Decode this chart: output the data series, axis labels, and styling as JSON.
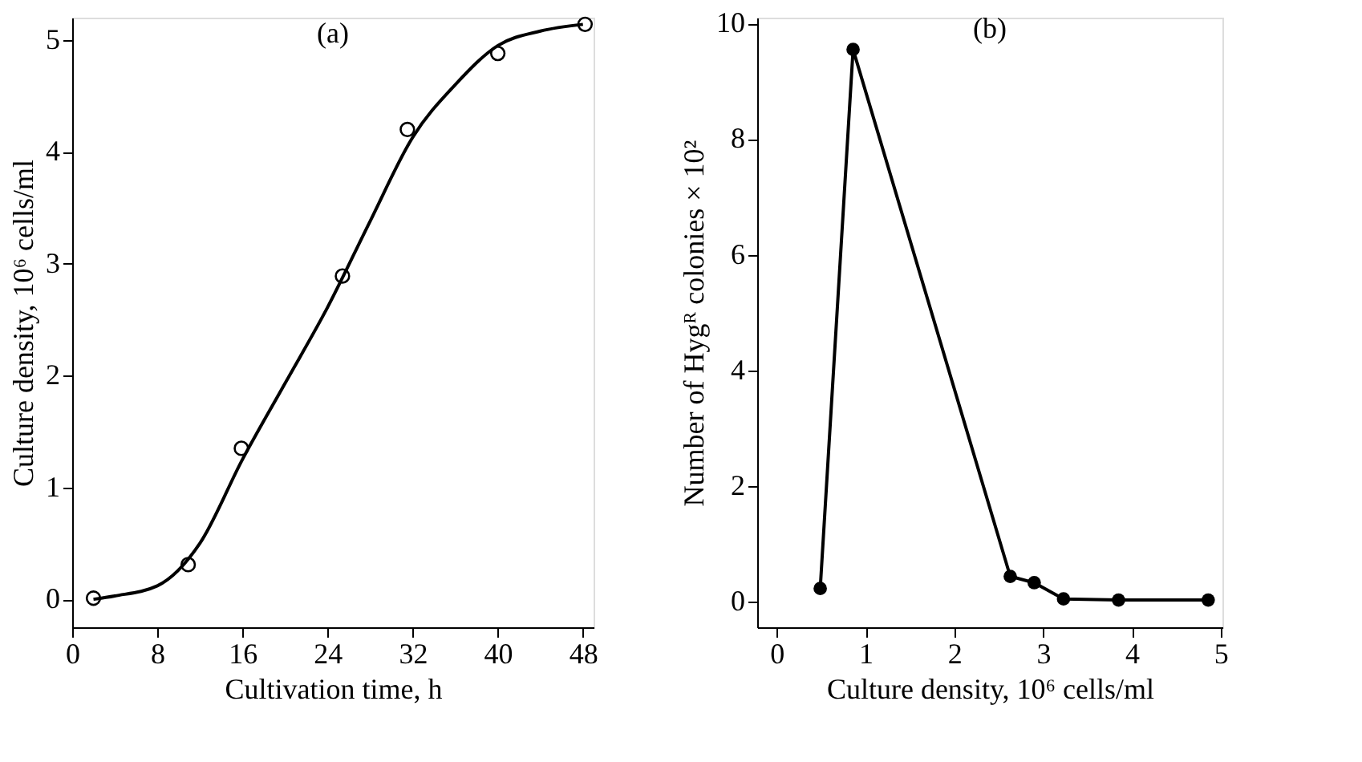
{
  "chart_data": [
    {
      "type": "scatter",
      "title": "(a)",
      "xlabel": "Cultivation time, h",
      "ylabel": "Culture density, 10⁶ cells/ml",
      "xlim": [
        0,
        49
      ],
      "ylim": [
        -0.25,
        5.2
      ],
      "xticks": [
        0,
        8,
        16,
        24,
        32,
        40,
        48
      ],
      "yticks": [
        0,
        1,
        2,
        3,
        4,
        5
      ],
      "grid": false,
      "marker": "circle",
      "series": [
        {
          "type": "scatter",
          "color": "#000000",
          "x": [
            2.0,
            10.9,
            15.9,
            25.4,
            31.5,
            40.0,
            48.2
          ],
          "values": [
            0.01,
            0.31,
            1.35,
            2.89,
            4.2,
            4.88,
            5.14
          ]
        },
        {
          "type": "line",
          "marker": "none",
          "line_style": "solid",
          "color": "#000000",
          "x": [
            2,
            4,
            8,
            12,
            16,
            20,
            24,
            28,
            32,
            36,
            40,
            44,
            48
          ],
          "values": [
            0.0,
            0.03,
            0.12,
            0.5,
            1.25,
            1.93,
            2.61,
            3.38,
            4.13,
            4.6,
            4.95,
            5.08,
            5.14
          ]
        }
      ]
    },
    {
      "type": "line",
      "title": "(b)",
      "xlabel": "Culture density, 10⁶ cells/ml",
      "ylabel": "Number of Hygᴿ colonies × 10²",
      "xlim": [
        -0.22,
        5.02
      ],
      "ylim": [
        -0.44,
        10.1
      ],
      "xticks": [
        0,
        1,
        2,
        3,
        4,
        5
      ],
      "yticks": [
        0,
        2,
        4,
        6,
        8,
        10
      ],
      "grid": false,
      "marker": "circle",
      "line_style": "solid",
      "series": [
        {
          "color": "#000000",
          "x": [
            0.49,
            0.86,
            2.63,
            2.9,
            3.23,
            3.85,
            4.86
          ],
          "values": [
            0.23,
            9.55,
            0.44,
            0.33,
            0.05,
            0.03,
            0.03
          ]
        }
      ]
    }
  ]
}
